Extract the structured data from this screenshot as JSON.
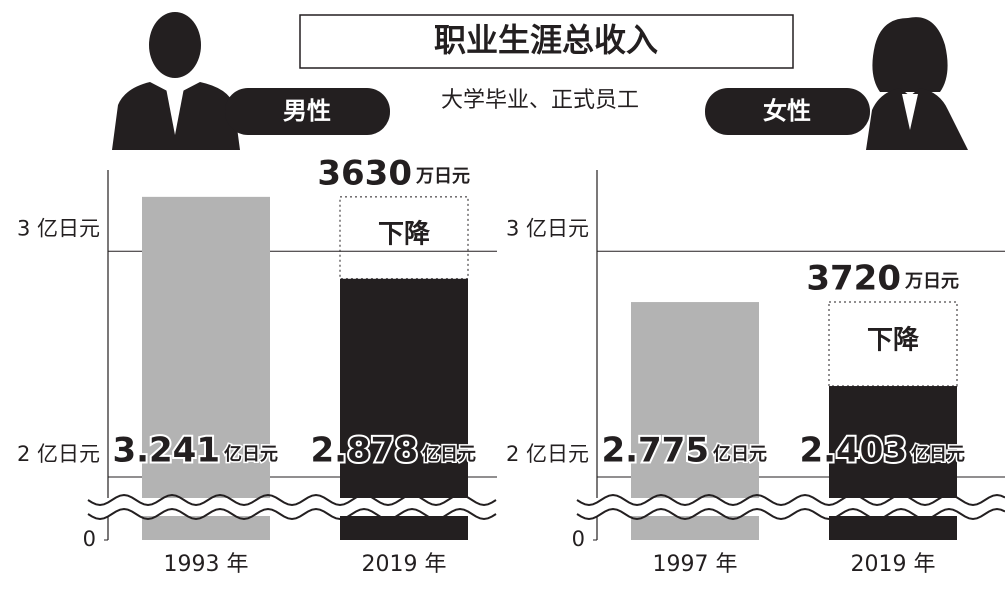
{
  "header": {
    "title": "职业生涯总收入",
    "subtitle": "大学毕业、正式员工"
  },
  "chart_data": [
    {
      "type": "bar",
      "title": "男性",
      "categories": [
        "1993 年",
        "2019 年"
      ],
      "values": [
        3.241,
        2.878
      ],
      "value_unit": "亿日元",
      "colors": [
        "#b3b3b3",
        "#231f20"
      ],
      "ylim": [
        0,
        3.36
      ],
      "yticks": [
        0,
        {
          "value": 2,
          "label": "2 亿日元"
        },
        {
          "value": 3,
          "label": "3 亿日元"
        }
      ],
      "grid": true,
      "axis_break": true,
      "decrease": {
        "value": 3630,
        "unit": "万日元",
        "label": "下降"
      }
    },
    {
      "type": "bar",
      "title": "女性",
      "categories": [
        "1997 年",
        "2019 年"
      ],
      "values": [
        2.775,
        2.403
      ],
      "value_unit": "亿日元",
      "colors": [
        "#b3b3b3",
        "#231f20"
      ],
      "ylim": [
        0,
        3.36
      ],
      "yticks": [
        0,
        {
          "value": 2,
          "label": "2 亿日元"
        },
        {
          "value": 3,
          "label": "3 亿日元"
        }
      ],
      "grid": true,
      "axis_break": true,
      "decrease": {
        "value": 3720,
        "unit": "万日元",
        "label": "下降"
      }
    }
  ]
}
